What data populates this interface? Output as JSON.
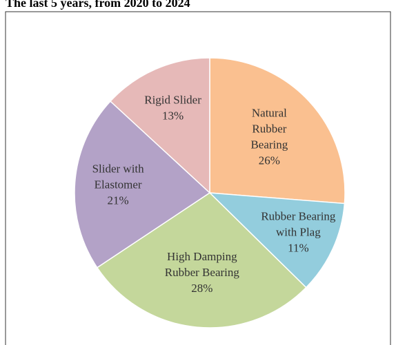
{
  "chart_data": {
    "type": "pie",
    "title": "The last 5 years, from 2020 to 2024",
    "categories": [
      [
        "Natural",
        "Rubber",
        "Bearing"
      ],
      [
        "Rubber Bearing",
        "with Plag"
      ],
      [
        "High Damping",
        "Rubber Bearing"
      ],
      [
        "Slider with",
        "Elastomer"
      ],
      [
        "Rigid Slider"
      ]
    ],
    "values": [
      26,
      11,
      28,
      21,
      13
    ],
    "value_labels": [
      "26%",
      "11%",
      "28%",
      "21%",
      "13%"
    ],
    "colors": [
      "#fac090",
      "#93cddd",
      "#c4d79b",
      "#b3a2c7",
      "#e6b9b8"
    ]
  }
}
